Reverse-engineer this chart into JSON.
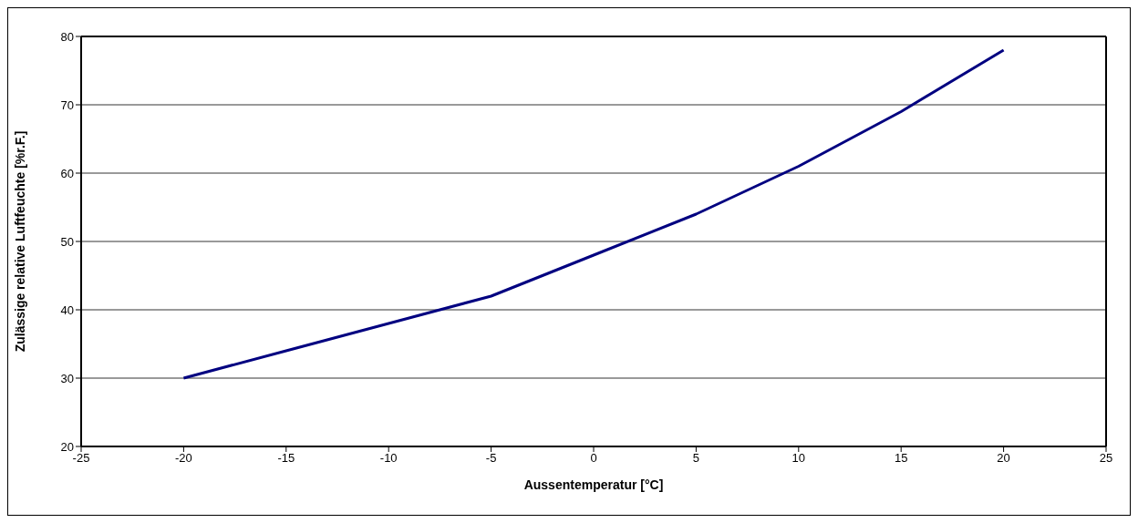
{
  "chart_data": {
    "type": "line",
    "xlabel": "Aussentemperatur [°C]",
    "ylabel": "Zulässige relative Luftfeuchte [%r.F.]",
    "x": [
      -20,
      -15,
      -10,
      -5,
      0,
      5,
      10,
      15,
      20
    ],
    "series": [
      {
        "color": "#000080",
        "values": [
          30,
          34,
          38,
          42,
          48,
          54,
          61,
          69,
          78
        ]
      }
    ],
    "xlim": [
      -25,
      25
    ],
    "xticks": [
      -25,
      -20,
      -15,
      -10,
      -5,
      0,
      5,
      10,
      15,
      20,
      25
    ],
    "ylim": [
      20,
      80
    ],
    "yticks": [
      20,
      30,
      40,
      50,
      60,
      70,
      80
    ],
    "grid": "y",
    "marker": "none",
    "line_style": "solid"
  }
}
